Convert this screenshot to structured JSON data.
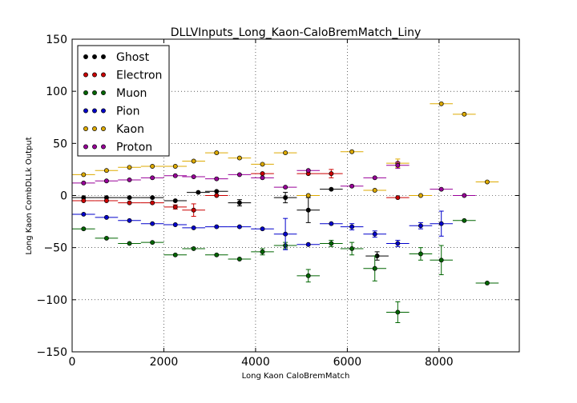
{
  "chart_data": {
    "type": "scatter",
    "title": "DLLVInputs_Long_Kaon-CaloBremMatch_Liny",
    "xlabel": "Long Kaon CaloBremMatch",
    "ylabel": "Long Kaon CombDLLk Output",
    "xlim": [
      0,
      9750
    ],
    "ylim": [
      -150,
      150
    ],
    "xticks": [
      0,
      2000,
      4000,
      6000,
      8000
    ],
    "yticks": [
      -150,
      -100,
      -50,
      0,
      50,
      100,
      150
    ],
    "xtick_labels": [
      "0",
      "2000",
      "4000",
      "6000",
      "8000"
    ],
    "ytick_labels": [
      "−150",
      "−100",
      "−50",
      "0",
      "50",
      "100",
      "150"
    ],
    "grid": true,
    "legend_position": "top-left",
    "series": [
      {
        "name": "Ghost",
        "color": "#000000",
        "x": [
          250,
          750,
          1250,
          1750,
          2250,
          2750,
          3150,
          3650,
          4650,
          5150,
          5650,
          6650
        ],
        "y": [
          -2,
          -2,
          -2,
          -2,
          -5,
          3,
          4,
          -7,
          -2,
          -14,
          6,
          -58
        ],
        "xerr": [
          250,
          250,
          250,
          250,
          250,
          250,
          250,
          250,
          250,
          250,
          250,
          250
        ],
        "yerr": [
          0,
          0,
          0,
          0,
          0,
          0,
          0,
          3,
          5,
          12,
          0,
          4
        ]
      },
      {
        "name": "Electron",
        "color": "#cc0000",
        "x": [
          250,
          750,
          1250,
          1750,
          2250,
          2650,
          3150,
          4150,
          5150,
          5650,
          7100
        ],
        "y": [
          -5,
          -5,
          -7,
          -7,
          -11,
          -14,
          0,
          21,
          21,
          21,
          -2
        ],
        "xerr": [
          250,
          250,
          250,
          250,
          250,
          250,
          250,
          250,
          250,
          250,
          250
        ],
        "yerr": [
          0,
          0,
          0,
          0,
          2,
          6,
          0,
          0,
          0,
          4,
          0
        ]
      },
      {
        "name": "Muon",
        "color": "#006600",
        "x": [
          250,
          750,
          1250,
          1750,
          2250,
          2650,
          3150,
          3650,
          4150,
          4650,
          5150,
          5650,
          6100,
          6600,
          7100,
          7600,
          8050,
          8550,
          9050
        ],
        "y": [
          -32,
          -41,
          -46,
          -45,
          -57,
          -51,
          -57,
          -61,
          -54,
          -48,
          -77,
          -46,
          -51,
          -70,
          -112,
          -56,
          -62,
          -24,
          -84
        ],
        "xerr": [
          250,
          250,
          250,
          250,
          250,
          250,
          250,
          250,
          250,
          250,
          250,
          250,
          250,
          250,
          250,
          250,
          250,
          250,
          250
        ],
        "yerr": [
          0,
          0,
          0,
          0,
          0,
          0,
          0,
          0,
          3,
          3,
          6,
          3,
          6,
          12,
          10,
          6,
          14,
          0,
          0
        ]
      },
      {
        "name": "Pion",
        "color": "#0000cc",
        "x": [
          250,
          750,
          1250,
          1750,
          2250,
          2650,
          3150,
          3650,
          4150,
          4650,
          5150,
          5650,
          6100,
          6600,
          7100,
          7600,
          8050
        ],
        "y": [
          -18,
          -21,
          -24,
          -27,
          -28,
          -31,
          -30,
          -30,
          -32,
          -37,
          -47,
          -27,
          -30,
          -37,
          -46,
          -29,
          -27
        ],
        "xerr": [
          250,
          250,
          250,
          250,
          250,
          250,
          250,
          250,
          250,
          250,
          250,
          250,
          250,
          250,
          250,
          250,
          250
        ],
        "yerr": [
          0,
          0,
          0,
          0,
          0,
          0,
          0,
          0,
          0,
          15,
          0,
          0,
          3,
          3,
          3,
          3,
          12
        ]
      },
      {
        "name": "Kaon",
        "color": "#ddaa00",
        "x": [
          250,
          750,
          1250,
          1750,
          2250,
          2650,
          3150,
          3650,
          4150,
          4650,
          5150,
          6100,
          6600,
          7100,
          7600,
          8050,
          8550,
          9050
        ],
        "y": [
          20,
          24,
          27,
          28,
          28,
          33,
          41,
          36,
          30,
          41,
          0,
          42,
          5,
          31,
          0,
          88,
          78,
          13
        ],
        "xerr": [
          250,
          250,
          250,
          250,
          250,
          250,
          250,
          250,
          250,
          250,
          250,
          250,
          250,
          250,
          250,
          250,
          250,
          250
        ],
        "yerr": [
          0,
          0,
          0,
          0,
          0,
          0,
          0,
          0,
          0,
          0,
          0,
          0,
          0,
          4,
          0,
          0,
          0,
          0
        ]
      },
      {
        "name": "Proton",
        "color": "#990099",
        "x": [
          250,
          750,
          1250,
          1750,
          2250,
          2650,
          3150,
          3650,
          4150,
          4650,
          5150,
          6100,
          6600,
          7100,
          8050,
          8550
        ],
        "y": [
          12,
          14,
          15,
          17,
          19,
          18,
          16,
          20,
          17,
          8,
          24,
          9,
          17,
          29,
          6,
          0
        ],
        "xerr": [
          250,
          250,
          250,
          250,
          250,
          250,
          250,
          250,
          250,
          250,
          250,
          250,
          250,
          250,
          250,
          250
        ],
        "yerr": [
          0,
          0,
          0,
          0,
          0,
          0,
          0,
          0,
          0,
          0,
          0,
          0,
          0,
          3,
          0,
          0
        ]
      }
    ]
  }
}
